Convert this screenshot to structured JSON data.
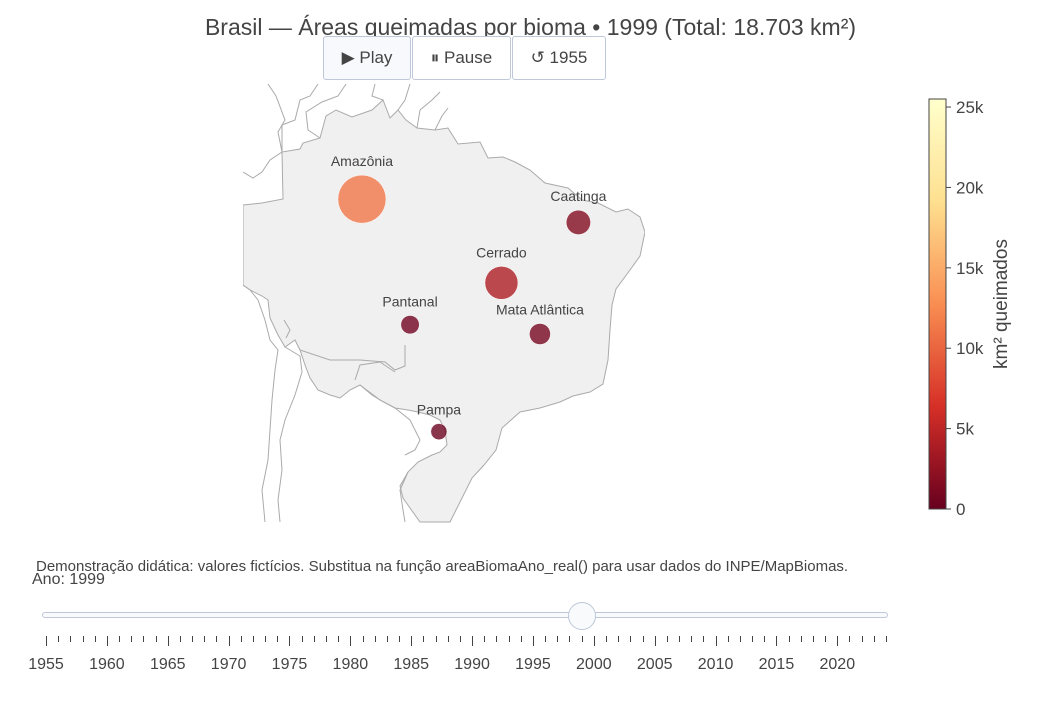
{
  "title": "Brasil — Áreas queimadas por bioma • 1999 (Total: 18.703 km²)",
  "buttons": {
    "play": "▶ Play",
    "pause": "⏸ Pause",
    "reset": "↺ 1955"
  },
  "map": {
    "projection": "mercator",
    "region": "South America",
    "land_color": "#f0f0f0",
    "border_color": "#aaaaaa"
  },
  "biomes": [
    {
      "name": "Amazônia",
      "lon": -62.0,
      "lat": -5.5,
      "area_km2": 11200,
      "label_position": "top"
    },
    {
      "name": "Caatinga",
      "lon": -39.5,
      "lat": -8.0,
      "area_km2": 1600,
      "label_position": "top"
    },
    {
      "name": "Cerrado",
      "lon": -47.5,
      "lat": -14.5,
      "area_km2": 4100,
      "label_position": "top"
    },
    {
      "name": "Pantanal",
      "lon": -57.0,
      "lat": -19.0,
      "area_km2": 550,
      "label_position": "top"
    },
    {
      "name": "Mata Atlântica",
      "lon": -43.5,
      "lat": -20.0,
      "area_km2": 950,
      "label_position": "top"
    },
    {
      "name": "Pampa",
      "lon": -54.0,
      "lat": -30.5,
      "area_km2": 300,
      "label_position": "top"
    }
  ],
  "colorbar": {
    "title": "km² queimados",
    "min": 0,
    "max": 25500,
    "ticks": [
      {
        "value": 0,
        "label": "0"
      },
      {
        "value": 5000,
        "label": "5k"
      },
      {
        "value": 10000,
        "label": "10k"
      },
      {
        "value": 15000,
        "label": "15k"
      },
      {
        "value": 20000,
        "label": "20k"
      },
      {
        "value": 25000,
        "label": "25k"
      }
    ],
    "colorscale": [
      "#67001f",
      "#d62f27",
      "#f98e52",
      "#fee090",
      "#ffffcc"
    ]
  },
  "note": "Demonstração didática: valores fictícios. Substitua na função areaBiomaAno_real() para usar dados do INPE/MapBiomas.",
  "slider": {
    "current_label": "Ano: 1999",
    "min_year": 1955,
    "max_year": 2024,
    "value": 1999,
    "labels": [
      "1955",
      "1960",
      "1965",
      "1970",
      "1975",
      "1980",
      "1985",
      "1990",
      "1995",
      "2000",
      "2005",
      "2010",
      "2015",
      "2020"
    ]
  }
}
